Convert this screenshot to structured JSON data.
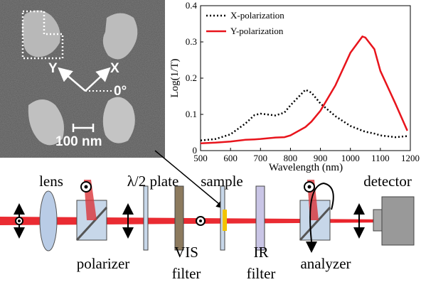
{
  "chart_data": {
    "type": "line",
    "xlabel": "Wavelength (nm)",
    "ylabel": "Log(1/T)",
    "x": [
      500,
      550,
      600,
      650,
      680,
      700,
      750,
      780,
      800,
      850,
      870,
      900,
      950,
      1000,
      1040,
      1050,
      1080,
      1100,
      1150,
      1190
    ],
    "series": [
      {
        "name": "X-polarization",
        "color": "#000000",
        "dash": "dotted",
        "values": [
          0.028,
          0.032,
          0.045,
          0.075,
          0.098,
          0.102,
          0.097,
          0.105,
          0.125,
          0.168,
          0.16,
          0.13,
          0.095,
          0.068,
          0.055,
          0.052,
          0.047,
          0.042,
          0.037,
          0.04
        ]
      },
      {
        "name": "Y-polarization",
        "color": "#e8141c",
        "dash": "solid",
        "values": [
          0.02,
          0.022,
          0.025,
          0.03,
          0.031,
          0.032,
          0.036,
          0.037,
          0.042,
          0.065,
          0.08,
          0.11,
          0.18,
          0.27,
          0.315,
          0.312,
          0.28,
          0.22,
          0.13,
          0.055
        ]
      }
    ],
    "xlim": [
      500,
      1200
    ],
    "xticks": [
      500,
      600,
      700,
      800,
      900,
      1000,
      1100,
      1200
    ],
    "ylim": [
      0,
      0.4
    ],
    "yticks": [
      0,
      0.1,
      0.2,
      0.3,
      0.4
    ],
    "legend": "upper left"
  },
  "sem_image": {
    "y_axis": "Y",
    "x_axis": "X",
    "angle": "0°",
    "scale_bar": "100 nm"
  },
  "setup": {
    "top_labels": [
      "lens",
      "λ/2 plate",
      "sample",
      "detector"
    ],
    "bottom_labels": [
      [
        "polarizer"
      ],
      [
        "VIS",
        "filter"
      ],
      [
        "IR",
        "filter"
      ],
      [
        "analyzer"
      ]
    ]
  }
}
